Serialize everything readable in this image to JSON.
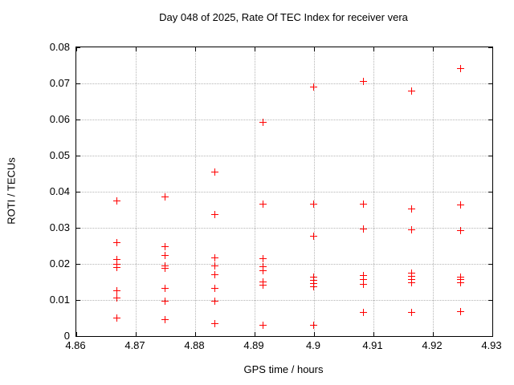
{
  "chart_data": {
    "type": "scatter",
    "title": "Day 048 of 2025, Rate Of TEC Index for receiver vera",
    "xlabel": "GPS time / hours",
    "ylabel": "ROTI / TECUs",
    "xlim": [
      4.86,
      4.93
    ],
    "ylim": [
      0,
      0.08
    ],
    "xticks": [
      4.86,
      4.87,
      4.88,
      4.89,
      4.9,
      4.91,
      4.92,
      4.93
    ],
    "xtick_labels": [
      "4.86",
      "4.87",
      "4.88",
      "4.89",
      "4.9",
      "4.91",
      "4.92",
      "4.93"
    ],
    "yticks": [
      0,
      0.01,
      0.02,
      0.03,
      0.04,
      0.05,
      0.06,
      0.07,
      0.08
    ],
    "ytick_labels": [
      "0",
      "0.01",
      "0.02",
      "0.03",
      "0.04",
      "0.05",
      "0.06",
      "0.07",
      "0.08"
    ],
    "grid": true,
    "legend_position": "none",
    "marker": {
      "shape": "plus",
      "color": "#ff0000",
      "size": 9
    },
    "axis_color": "#000000",
    "grid_color": "#b5b5b5",
    "series": [
      {
        "name": "ROTI",
        "points": [
          [
            4.8667,
            0.0375
          ],
          [
            4.8667,
            0.0261
          ],
          [
            4.8667,
            0.0214
          ],
          [
            4.8667,
            0.02
          ],
          [
            4.8667,
            0.0192
          ],
          [
            4.8667,
            0.0127
          ],
          [
            4.8667,
            0.0107
          ],
          [
            4.8667,
            0.0052
          ],
          [
            4.8749,
            0.0387
          ],
          [
            4.8749,
            0.025
          ],
          [
            4.8749,
            0.0225
          ],
          [
            4.8749,
            0.0196
          ],
          [
            4.8749,
            0.0188
          ],
          [
            4.8749,
            0.0133
          ],
          [
            4.8749,
            0.0097
          ],
          [
            4.8749,
            0.0046
          ],
          [
            4.8832,
            0.0455
          ],
          [
            4.8832,
            0.0338
          ],
          [
            4.8832,
            0.0218
          ],
          [
            4.8832,
            0.0196
          ],
          [
            4.8832,
            0.0172
          ],
          [
            4.8832,
            0.0133
          ],
          [
            4.8832,
            0.0097
          ],
          [
            4.8832,
            0.0036
          ],
          [
            4.8914,
            0.0594
          ],
          [
            4.8914,
            0.0367
          ],
          [
            4.8914,
            0.0216
          ],
          [
            4.8914,
            0.0194
          ],
          [
            4.8914,
            0.0183
          ],
          [
            4.8914,
            0.0152
          ],
          [
            4.8914,
            0.0143
          ],
          [
            4.8914,
            0.0031
          ],
          [
            4.8998,
            0.0691
          ],
          [
            4.8998,
            0.0366
          ],
          [
            4.8998,
            0.0277
          ],
          [
            4.8998,
            0.0164
          ],
          [
            4.8998,
            0.0155
          ],
          [
            4.8998,
            0.0146
          ],
          [
            4.8998,
            0.0137
          ],
          [
            4.8998,
            0.0031
          ],
          [
            4.9082,
            0.0707
          ],
          [
            4.9082,
            0.0366
          ],
          [
            4.9082,
            0.0297
          ],
          [
            4.9082,
            0.0169
          ],
          [
            4.9082,
            0.0158
          ],
          [
            4.9082,
            0.0145
          ],
          [
            4.9082,
            0.0066
          ],
          [
            4.9164,
            0.068
          ],
          [
            4.9164,
            0.0354
          ],
          [
            4.9164,
            0.0296
          ],
          [
            4.9164,
            0.0175
          ],
          [
            4.9164,
            0.0166
          ],
          [
            4.9164,
            0.0157
          ],
          [
            4.9164,
            0.0149
          ],
          [
            4.9164,
            0.0066
          ],
          [
            4.9246,
            0.0743
          ],
          [
            4.9246,
            0.0364
          ],
          [
            4.9246,
            0.0293
          ],
          [
            4.9246,
            0.0164
          ],
          [
            4.9246,
            0.0157
          ],
          [
            4.9246,
            0.015
          ],
          [
            4.9246,
            0.007
          ]
        ]
      }
    ]
  }
}
